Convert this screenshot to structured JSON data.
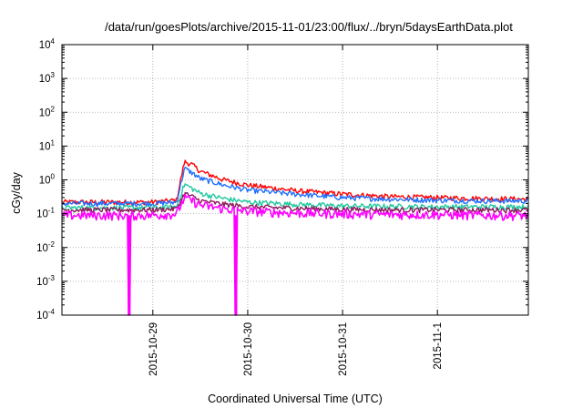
{
  "chart_data": {
    "type": "line",
    "title": "/data/run/goesPlots/archive/2015-11-01/23:00/flux/../bryn/5daysEarthData.plot",
    "xlabel": "Coordinated Universal Time (UTC)",
    "ylabel": "cGy/day",
    "y_scale": "log",
    "ylim": [
      0.0001,
      10000
    ],
    "y_ticks": [
      {
        "mantissa": "10",
        "exp": "-4"
      },
      {
        "mantissa": "10",
        "exp": "-3"
      },
      {
        "mantissa": "10",
        "exp": "-2"
      },
      {
        "mantissa": "10",
        "exp": "-1"
      },
      {
        "mantissa": "10",
        "exp": "0"
      },
      {
        "mantissa": "10",
        "exp": "1"
      },
      {
        "mantissa": "10",
        "exp": "2"
      },
      {
        "mantissa": "10",
        "exp": "3"
      },
      {
        "mantissa": "10",
        "exp": "4"
      }
    ],
    "xlim": [
      "2015-10-28T01:00",
      "2015-11-01T23:00"
    ],
    "x_ticks": [
      "2015-10-29",
      "2015-10-30",
      "2015-10-31",
      "2015-11-1"
    ],
    "grid": true,
    "legend": "none",
    "series": [
      {
        "color": "#ff0000",
        "x": [
          "2015-10-28T01:00",
          "2015-10-29T00:00",
          "2015-10-29T06:00",
          "2015-10-29T08:00",
          "2015-10-29T10:00",
          "2015-10-29T12:00",
          "2015-10-29T18:00",
          "2015-10-30T00:00",
          "2015-10-30T12:00",
          "2015-10-31T00:00",
          "2015-10-31T12:00",
          "2015-11-01T00:00",
          "2015-11-01T12:00",
          "2015-11-01T23:00"
        ],
        "values": [
          0.22,
          0.22,
          0.25,
          3.5,
          2.8,
          1.8,
          1.0,
          0.7,
          0.48,
          0.38,
          0.32,
          0.3,
          0.28,
          0.27
        ]
      },
      {
        "color": "#1e6fff",
        "x": [
          "2015-10-28T01:00",
          "2015-10-29T00:00",
          "2015-10-29T06:00",
          "2015-10-29T08:00",
          "2015-10-29T10:00",
          "2015-10-29T12:00",
          "2015-10-29T18:00",
          "2015-10-30T00:00",
          "2015-10-30T12:00",
          "2015-10-31T00:00",
          "2015-10-31T12:00",
          "2015-11-01T00:00",
          "2015-11-01T12:00",
          "2015-11-01T23:00"
        ],
        "values": [
          0.2,
          0.2,
          0.22,
          2.2,
          1.6,
          1.1,
          0.7,
          0.5,
          0.38,
          0.3,
          0.27,
          0.25,
          0.24,
          0.24
        ]
      },
      {
        "color": "#20c8a0",
        "x": [
          "2015-10-28T01:00",
          "2015-10-29T00:00",
          "2015-10-29T06:00",
          "2015-10-29T08:00",
          "2015-10-29T10:00",
          "2015-10-29T12:00",
          "2015-10-29T18:00",
          "2015-10-30T00:00",
          "2015-10-30T12:00",
          "2015-10-31T00:00",
          "2015-10-31T12:00",
          "2015-11-01T00:00",
          "2015-11-01T12:00",
          "2015-11-01T23:00"
        ],
        "values": [
          0.15,
          0.15,
          0.16,
          0.75,
          0.55,
          0.4,
          0.28,
          0.22,
          0.19,
          0.17,
          0.165,
          0.16,
          0.16,
          0.16
        ]
      },
      {
        "color": "#8b1a5a",
        "x": [
          "2015-10-28T01:00",
          "2015-10-29T00:00",
          "2015-10-29T06:00",
          "2015-10-29T08:00",
          "2015-10-29T10:00",
          "2015-10-29T12:00",
          "2015-10-29T18:00",
          "2015-10-30T00:00",
          "2015-10-30T12:00",
          "2015-10-31T00:00",
          "2015-10-31T12:00",
          "2015-11-01T00:00",
          "2015-11-01T12:00",
          "2015-11-01T23:00"
        ],
        "values": [
          0.13,
          0.13,
          0.14,
          0.4,
          0.32,
          0.24,
          0.19,
          0.16,
          0.145,
          0.135,
          0.13,
          0.13,
          0.13,
          0.13
        ]
      },
      {
        "color": "#ff00ff",
        "x": [
          "2015-10-28T01:00",
          "2015-10-29T00:00",
          "2015-10-29T06:00",
          "2015-10-29T08:00",
          "2015-10-29T10:00",
          "2015-10-29T12:00",
          "2015-10-29T18:00",
          "2015-10-30T00:00",
          "2015-10-30T12:00",
          "2015-10-31T00:00",
          "2015-10-31T12:00",
          "2015-11-01T00:00",
          "2015-11-01T12:00",
          "2015-11-01T23:00"
        ],
        "values": [
          0.09,
          0.09,
          0.1,
          0.3,
          0.24,
          0.18,
          0.14,
          0.12,
          0.105,
          0.1,
          0.095,
          0.095,
          0.09,
          0.09
        ],
        "dropouts": [
          "2015-10-28T18:00",
          "2015-10-29T21:00"
        ]
      }
    ]
  }
}
